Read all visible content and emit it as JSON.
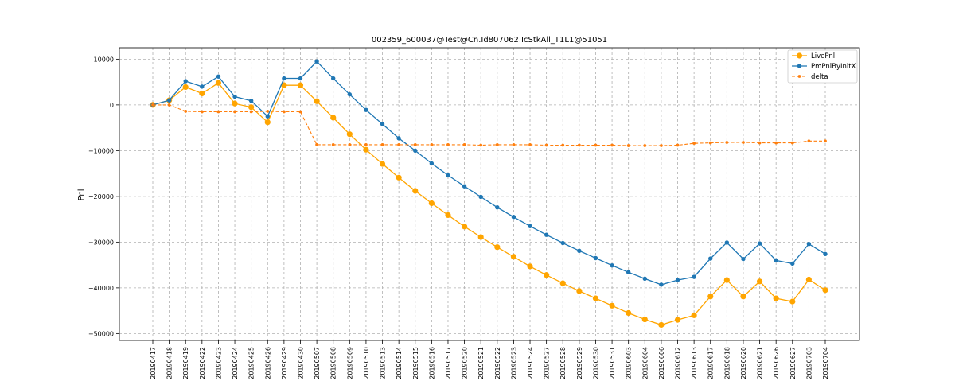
{
  "chart_data": {
    "type": "line",
    "title": "002359_600037@Test@Cn.Id807062.IcStkAll_T1L1@51051",
    "xlabel": "",
    "ylabel": "Pnl",
    "ylim": [
      -51500,
      12500
    ],
    "yticks": [
      10000,
      0,
      -10000,
      -20000,
      -30000,
      -40000,
      -50000
    ],
    "ytick_labels": [
      "10000",
      "0",
      "−10000",
      "−20000",
      "−30000",
      "−40000",
      "−50000"
    ],
    "grid": true,
    "legend_position": "top-right",
    "categories": [
      "20190417",
      "20190418",
      "20190419",
      "20190422",
      "20190423",
      "20190424",
      "20190425",
      "20190426",
      "20190429",
      "20190430",
      "20190507",
      "20190508",
      "20190509",
      "20190510",
      "20190513",
      "20190514",
      "20190515",
      "20190516",
      "20190517",
      "20190520",
      "20190521",
      "20190522",
      "20190523",
      "20190524",
      "20190527",
      "20190528",
      "20190529",
      "20190530",
      "20190531",
      "20190603",
      "20190604",
      "20190606",
      "20190612",
      "20190613",
      "20190617",
      "20190618",
      "20190620",
      "20190621",
      "20190626",
      "20190627",
      "20190703",
      "20190704"
    ],
    "series": [
      {
        "name": "LivePnl",
        "color": "#ffa500",
        "style": "solid",
        "marker": "circle-large",
        "values": [
          0,
          1000,
          3900,
          2500,
          4800,
          300,
          -500,
          -3800,
          4300,
          4300,
          800,
          -2800,
          -6400,
          -9800,
          -12900,
          -15900,
          -18800,
          -21500,
          -24100,
          -26600,
          -28900,
          -31100,
          -33200,
          -35300,
          -37200,
          -39000,
          -40700,
          -42300,
          -43900,
          -45500,
          -46900,
          -48100,
          -47000,
          -46000,
          -41900,
          -38300,
          -41900,
          -38600,
          -42300,
          -43000,
          -38200,
          -40500
        ]
      },
      {
        "name": "PmPnlByInitX",
        "color": "#1f77b4",
        "style": "solid",
        "marker": "circle-small",
        "values": [
          0,
          1000,
          5200,
          4000,
          6200,
          1800,
          900,
          -2500,
          5800,
          5800,
          9500,
          5800,
          2300,
          -1100,
          -4200,
          -7300,
          -10000,
          -12800,
          -15400,
          -17800,
          -20100,
          -22400,
          -24500,
          -26500,
          -28400,
          -30200,
          -31900,
          -33500,
          -35100,
          -36600,
          -38000,
          -39300,
          -38300,
          -37600,
          -33600,
          -30100,
          -33700,
          -30300,
          -34000,
          -34700,
          -30400,
          -32600
        ]
      },
      {
        "name": "delta",
        "color": "#ff7f0e",
        "style": "dashed",
        "marker": "circle-tiny",
        "values": [
          0,
          0,
          -1400,
          -1500,
          -1500,
          -1500,
          -1500,
          -1400,
          -1500,
          -1500,
          -8700,
          -8700,
          -8700,
          -8700,
          -8700,
          -8700,
          -8700,
          -8700,
          -8700,
          -8700,
          -8800,
          -8700,
          -8700,
          -8700,
          -8800,
          -8800,
          -8800,
          -8800,
          -8800,
          -8900,
          -8900,
          -8900,
          -8800,
          -8400,
          -8300,
          -8200,
          -8200,
          -8300,
          -8300,
          -8300,
          -7900,
          -7900
        ]
      }
    ]
  }
}
